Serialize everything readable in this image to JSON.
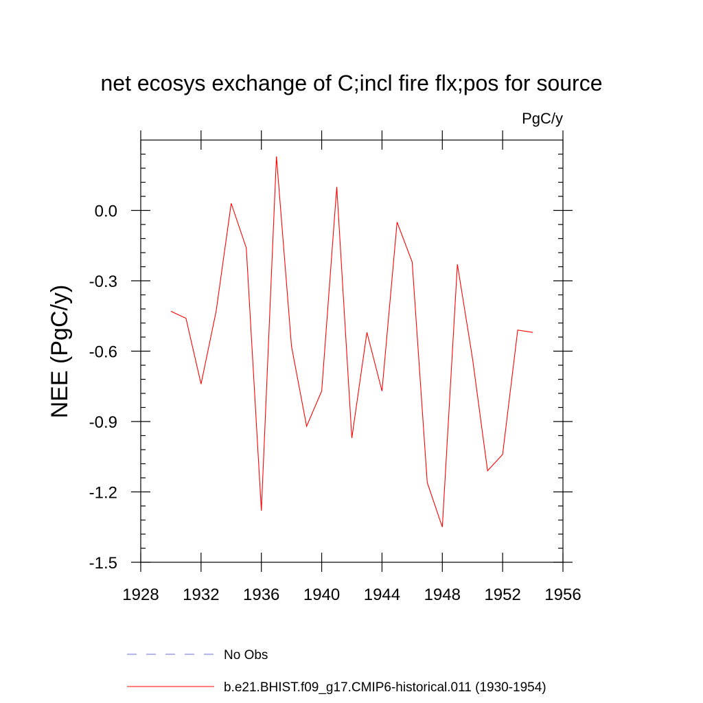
{
  "chart_data": {
    "type": "line",
    "title": "net ecosys exchange of C;incl fire flx;pos for source",
    "units": "PgC/y",
    "xlabel": "",
    "ylabel": "NEE  (PgC/y)",
    "xlim": [
      1928,
      1956
    ],
    "ylim": [
      -1.5,
      0.3
    ],
    "x_ticks": [
      1928,
      1932,
      1936,
      1940,
      1944,
      1948,
      1952,
      1956
    ],
    "x_tick_labels": [
      "1928",
      "1932",
      "1936",
      "1940",
      "1944",
      "1948",
      "1952",
      "1956"
    ],
    "y_ticks": [
      -1.5,
      -1.2,
      -0.9,
      -0.6,
      -0.3,
      0.0
    ],
    "y_tick_labels": [
      "-1.5",
      "-1.2",
      "-0.9",
      "-0.6",
      "-0.3",
      "0.0"
    ],
    "grid": false,
    "legend_position": "bottom",
    "series": [
      {
        "name": "No Obs",
        "color": "#6b6bd6",
        "style": "dashed",
        "x": [],
        "y": []
      },
      {
        "name": "b.e21.BHIST.f09_g17.CMIP6-historical.011 (1930-1954)",
        "color": "#ff0000",
        "style": "solid",
        "x": [
          1930,
          1931,
          1932,
          1933,
          1934,
          1935,
          1936,
          1937,
          1938,
          1939,
          1940,
          1941,
          1942,
          1943,
          1944,
          1945,
          1946,
          1947,
          1948,
          1949,
          1950,
          1951,
          1952,
          1953,
          1954
        ],
        "y": [
          -0.43,
          -0.46,
          -0.74,
          -0.43,
          0.03,
          -0.16,
          -1.28,
          0.23,
          -0.58,
          -0.92,
          -0.77,
          0.1,
          -0.97,
          -0.52,
          -0.77,
          -0.05,
          -0.22,
          -1.16,
          -1.35,
          -0.23,
          -0.63,
          -1.11,
          -1.04,
          -0.51,
          -0.52
        ]
      }
    ]
  }
}
